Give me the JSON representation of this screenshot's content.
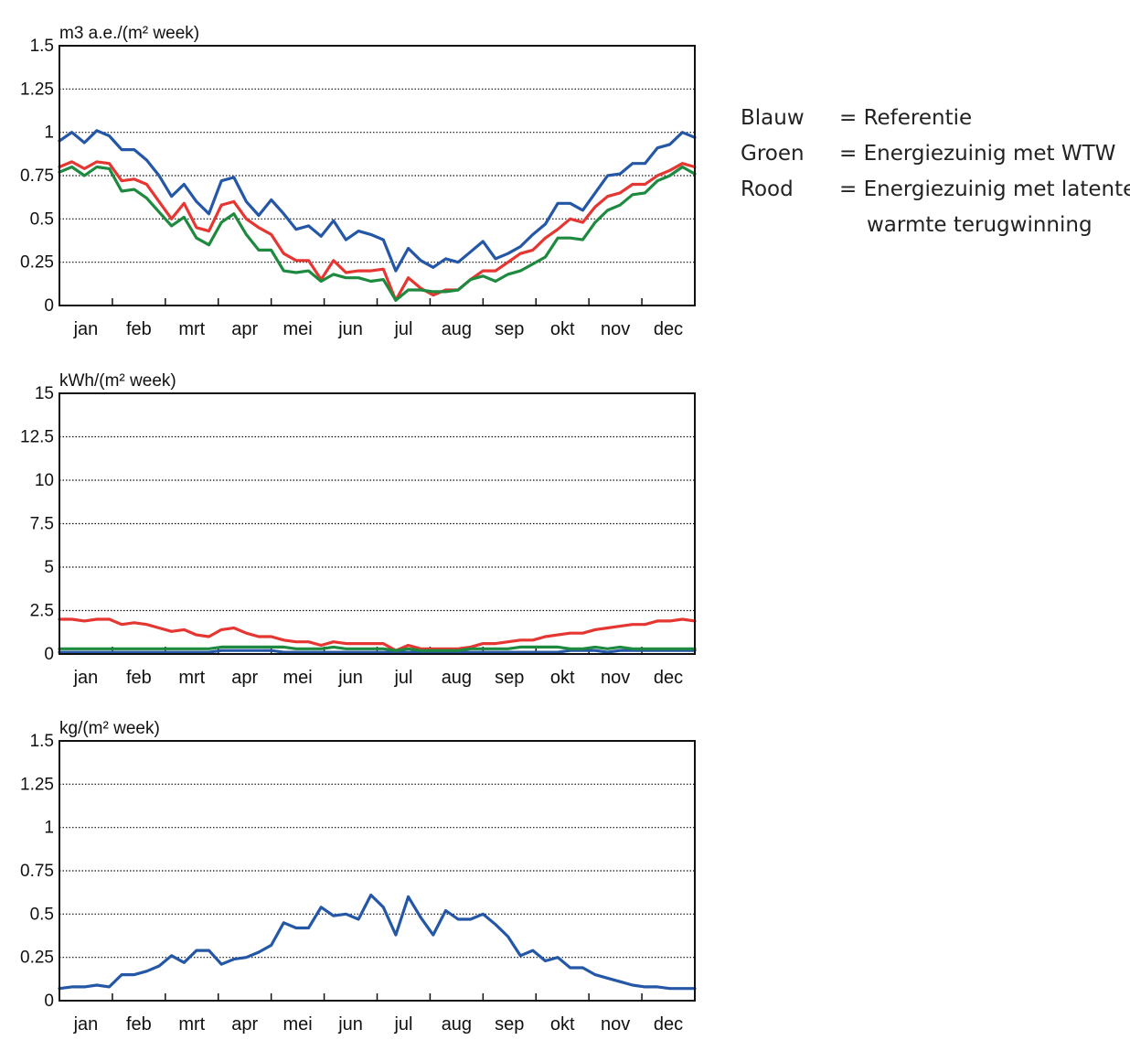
{
  "chart_data": [
    {
      "type": "line",
      "ylabel": "m3 a.e./(m² week)",
      "ylim": [
        0,
        1.5
      ],
      "yticks": [
        "0",
        "0.25",
        "0.5",
        "0.75",
        "1",
        "1.25",
        "1.5"
      ],
      "months": [
        "jan",
        "feb",
        "mrt",
        "apr",
        "mei",
        "jun",
        "jul",
        "aug",
        "sep",
        "okt",
        "nov",
        "dec"
      ],
      "grid": "dotted horizontal",
      "series": [
        {
          "color": "#2557a7",
          "values": [
            0.95,
            1.0,
            0.94,
            1.01,
            0.98,
            0.9,
            0.9,
            0.84,
            0.75,
            0.63,
            0.7,
            0.6,
            0.53,
            0.72,
            0.74,
            0.6,
            0.52,
            0.61,
            0.53,
            0.44,
            0.46,
            0.4,
            0.49,
            0.38,
            0.43,
            0.41,
            0.38,
            0.2,
            0.33,
            0.26,
            0.22,
            0.27,
            0.25,
            0.31,
            0.37,
            0.27,
            0.3,
            0.34,
            0.41,
            0.47,
            0.59,
            0.59,
            0.55,
            0.65,
            0.75,
            0.76,
            0.82,
            0.82,
            0.91,
            0.93,
            1.0,
            0.97
          ]
        },
        {
          "color": "#e63632",
          "values": [
            0.8,
            0.83,
            0.79,
            0.83,
            0.82,
            0.72,
            0.73,
            0.7,
            0.6,
            0.5,
            0.59,
            0.45,
            0.43,
            0.58,
            0.6,
            0.5,
            0.45,
            0.41,
            0.3,
            0.26,
            0.26,
            0.15,
            0.26,
            0.19,
            0.2,
            0.2,
            0.21,
            0.03,
            0.16,
            0.1,
            0.06,
            0.09,
            0.09,
            0.15,
            0.2,
            0.2,
            0.25,
            0.3,
            0.32,
            0.39,
            0.44,
            0.5,
            0.48,
            0.57,
            0.63,
            0.65,
            0.7,
            0.7,
            0.75,
            0.78,
            0.82,
            0.8
          ]
        },
        {
          "color": "#1e8a3f",
          "values": [
            0.77,
            0.8,
            0.75,
            0.8,
            0.79,
            0.66,
            0.67,
            0.62,
            0.54,
            0.46,
            0.51,
            0.39,
            0.35,
            0.48,
            0.53,
            0.41,
            0.32,
            0.32,
            0.2,
            0.19,
            0.2,
            0.14,
            0.18,
            0.16,
            0.16,
            0.14,
            0.15,
            0.03,
            0.09,
            0.09,
            0.08,
            0.08,
            0.09,
            0.15,
            0.17,
            0.14,
            0.18,
            0.2,
            0.24,
            0.28,
            0.39,
            0.39,
            0.38,
            0.48,
            0.55,
            0.58,
            0.64,
            0.65,
            0.72,
            0.75,
            0.8,
            0.76
          ]
        }
      ]
    },
    {
      "type": "line",
      "ylabel": "kWh/(m² week)",
      "ylim": [
        0,
        15
      ],
      "yticks": [
        "0",
        "2.5",
        "5",
        "7.5",
        "10",
        "12.5",
        "15"
      ],
      "months": [
        "jan",
        "feb",
        "mrt",
        "apr",
        "mei",
        "jun",
        "jul",
        "aug",
        "sep",
        "okt",
        "nov",
        "dec"
      ],
      "grid": "dotted horizontal",
      "series": [
        {
          "color": "#2557a7",
          "values": [
            0.1,
            0.1,
            0.1,
            0.1,
            0.1,
            0.1,
            0.1,
            0.1,
            0.1,
            0.1,
            0.1,
            0.1,
            0.1,
            0.2,
            0.2,
            0.2,
            0.2,
            0.2,
            0.1,
            0.1,
            0.1,
            0.1,
            0.1,
            0.1,
            0.1,
            0.1,
            0.1,
            0.1,
            0.1,
            0.1,
            0.1,
            0.1,
            0.1,
            0.1,
            0.1,
            0.1,
            0.1,
            0.1,
            0.1,
            0.1,
            0.1,
            0.2,
            0.2,
            0.2,
            0.1,
            0.2,
            0.2,
            0.2,
            0.2,
            0.2,
            0.2,
            0.2
          ]
        },
        {
          "color": "#e63632",
          "values": [
            2.0,
            2.0,
            1.9,
            2.0,
            2.0,
            1.7,
            1.8,
            1.7,
            1.5,
            1.3,
            1.4,
            1.1,
            1.0,
            1.4,
            1.5,
            1.2,
            1.0,
            1.0,
            0.8,
            0.7,
            0.7,
            0.5,
            0.7,
            0.6,
            0.6,
            0.6,
            0.6,
            0.2,
            0.5,
            0.3,
            0.3,
            0.3,
            0.3,
            0.4,
            0.6,
            0.6,
            0.7,
            0.8,
            0.8,
            1.0,
            1.1,
            1.2,
            1.2,
            1.4,
            1.5,
            1.6,
            1.7,
            1.7,
            1.9,
            1.9,
            2.0,
            1.9
          ]
        },
        {
          "color": "#1e8a3f",
          "values": [
            0.3,
            0.3,
            0.3,
            0.3,
            0.3,
            0.3,
            0.3,
            0.3,
            0.3,
            0.3,
            0.3,
            0.3,
            0.3,
            0.4,
            0.4,
            0.4,
            0.4,
            0.4,
            0.4,
            0.3,
            0.3,
            0.3,
            0.4,
            0.3,
            0.3,
            0.3,
            0.3,
            0.2,
            0.3,
            0.2,
            0.2,
            0.2,
            0.2,
            0.3,
            0.3,
            0.3,
            0.3,
            0.4,
            0.4,
            0.4,
            0.4,
            0.3,
            0.3,
            0.4,
            0.3,
            0.4,
            0.3,
            0.3,
            0.3,
            0.3,
            0.3,
            0.3
          ]
        }
      ]
    },
    {
      "type": "line",
      "ylabel": "kg/(m² week)",
      "ylim": [
        0,
        1.5
      ],
      "yticks": [
        "0",
        "0.25",
        "0.5",
        "0.75",
        "1",
        "1.25",
        "1.5"
      ],
      "months": [
        "jan",
        "feb",
        "mrt",
        "apr",
        "mei",
        "jun",
        "jul",
        "aug",
        "sep",
        "okt",
        "nov",
        "dec"
      ],
      "grid": "dotted horizontal",
      "series": [
        {
          "color": "#2557a7",
          "values": [
            0.07,
            0.08,
            0.08,
            0.09,
            0.08,
            0.15,
            0.15,
            0.17,
            0.2,
            0.26,
            0.22,
            0.29,
            0.29,
            0.21,
            0.24,
            0.25,
            0.28,
            0.32,
            0.45,
            0.42,
            0.42,
            0.54,
            0.49,
            0.5,
            0.47,
            0.61,
            0.54,
            0.38,
            0.6,
            0.48,
            0.38,
            0.52,
            0.47,
            0.47,
            0.5,
            0.44,
            0.37,
            0.26,
            0.29,
            0.23,
            0.25,
            0.19,
            0.19,
            0.15,
            0.13,
            0.11,
            0.09,
            0.08,
            0.08,
            0.07,
            0.07,
            0.07
          ]
        }
      ]
    }
  ],
  "legend": {
    "items": [
      {
        "name": "Blauw",
        "desc": "= Referentie"
      },
      {
        "name": "Groen",
        "desc": "= Energiezuinig met WTW"
      },
      {
        "name": "Rood",
        "desc": "= Energiezuinig met latente"
      }
    ],
    "continuation": "warmte terugwinning"
  }
}
